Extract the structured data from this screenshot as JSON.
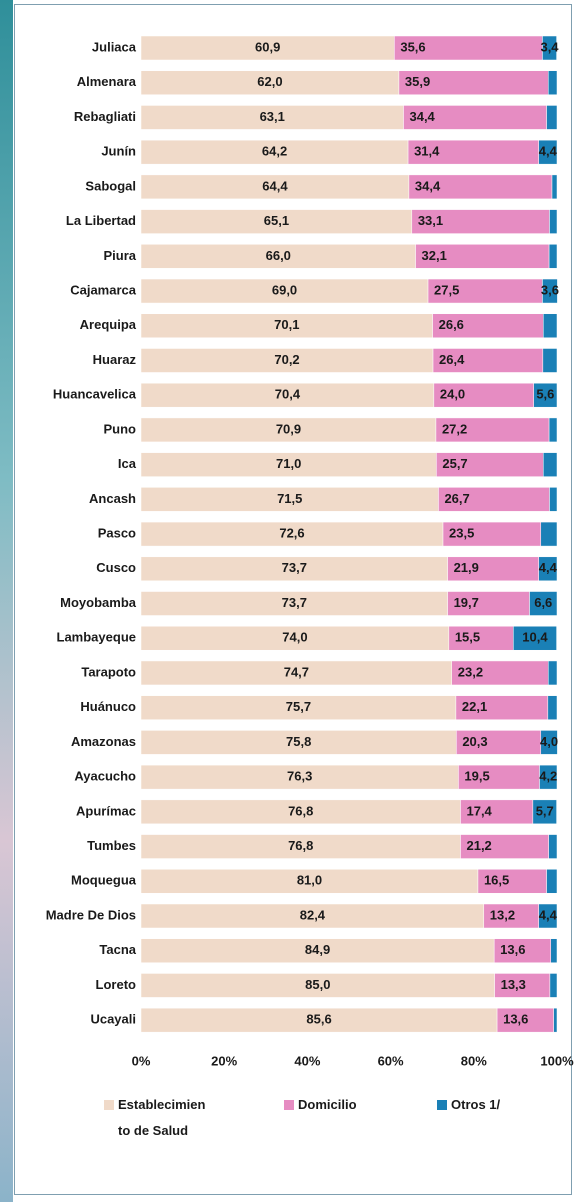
{
  "chart_data": {
    "type": "stacked-bar-horizontal",
    "categories": [
      "Juliaca",
      "Almenara",
      "Rebagliati",
      "Junín",
      "Sabogal",
      "La Libertad",
      "Piura",
      "Cajamarca",
      "Arequipa",
      "Huaraz",
      "Huancavelica",
      "Puno",
      "Ica",
      "Ancash",
      "Pasco",
      "Cusco",
      "Moyobamba",
      "Lambayeque",
      "Tarapoto",
      "Huánuco",
      "Amazonas",
      "Ayacucho",
      "Apurímac",
      "Tumbes",
      "Moquegua",
      "Madre De Dios",
      "Tacna",
      "Loreto",
      "Ucayali"
    ],
    "series": [
      {
        "name": "Establecimien to de Salud",
        "color": "#f0dac9",
        "values": [
          60.9,
          62.0,
          63.1,
          64.2,
          64.4,
          65.1,
          66.0,
          69.0,
          70.1,
          70.2,
          70.4,
          70.9,
          71.0,
          71.5,
          72.6,
          73.7,
          73.7,
          74.0,
          74.7,
          75.7,
          75.8,
          76.3,
          76.8,
          76.8,
          81.0,
          82.4,
          84.9,
          85.0,
          85.6
        ],
        "value_labels": [
          "60,9",
          "62,0",
          "63,1",
          "64,2",
          "64,4",
          "65,1",
          "66,0",
          "69,0",
          "70,1",
          "70,2",
          "70,4",
          "70,9",
          "71,0",
          "71,5",
          "72,6",
          "73,7",
          "73,7",
          "74,0",
          "74,7",
          "75,7",
          "75,8",
          "76,3",
          "76,8",
          "76,8",
          "81,0",
          "82,4",
          "84,9",
          "85,0",
          "85,6"
        ]
      },
      {
        "name": "Domicilio",
        "color": "#e68cc2",
        "values": [
          35.6,
          35.9,
          34.4,
          31.4,
          34.4,
          33.1,
          32.1,
          27.5,
          26.6,
          26.4,
          24.0,
          27.2,
          25.7,
          26.7,
          23.5,
          21.9,
          19.7,
          15.5,
          23.2,
          22.1,
          20.3,
          19.5,
          17.4,
          21.2,
          16.5,
          13.2,
          13.6,
          13.3,
          13.6
        ],
        "value_labels": [
          "35,6",
          "35,9",
          "34,4",
          "31,4",
          "34,4",
          "33,1",
          "32,1",
          "27,5",
          "26,6",
          "26,4",
          "24,0",
          "27,2",
          "25,7",
          "26,7",
          "23,5",
          "21,9",
          "19,7",
          "15,5",
          "23,2",
          "22,1",
          "20,3",
          "19,5",
          "17,4",
          "21,2",
          "16,5",
          "13,2",
          "13,6",
          "13,3",
          "13,6"
        ]
      },
      {
        "name": "Otros 1/",
        "color": "#1a80b6",
        "values": [
          3.4,
          2.1,
          2.5,
          4.4,
          1.2,
          1.8,
          1.9,
          3.6,
          3.3,
          3.4,
          5.6,
          1.9,
          3.3,
          1.8,
          3.9,
          4.4,
          6.6,
          10.4,
          2.1,
          2.2,
          4.0,
          4.2,
          5.7,
          2.0,
          2.5,
          4.4,
          1.5,
          1.7,
          0.8
        ],
        "value_labels": [
          "3,4",
          null,
          null,
          "4,4",
          null,
          null,
          null,
          "3,6",
          null,
          null,
          "5,6",
          null,
          null,
          null,
          null,
          "4,4",
          "6,6",
          "10,4",
          null,
          null,
          "4,0",
          "4,2",
          "5,7",
          null,
          null,
          "4,4",
          null,
          null,
          null
        ]
      }
    ],
    "xlim": [
      0,
      100
    ],
    "xticks": [
      {
        "value": 0,
        "label": "0%"
      },
      {
        "value": 20,
        "label": "20%"
      },
      {
        "value": 40,
        "label": "40%"
      },
      {
        "value": 60,
        "label": "60%"
      },
      {
        "value": 80,
        "label": "80%"
      },
      {
        "value": 100,
        "label": "100%"
      }
    ],
    "legend": "bottom"
  }
}
